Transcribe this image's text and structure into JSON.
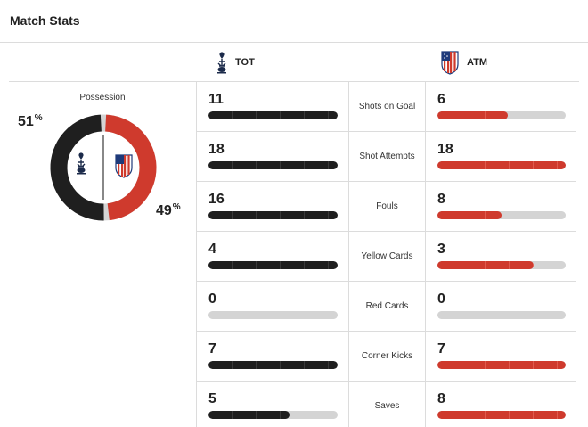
{
  "header": {
    "title": "Match Stats"
  },
  "teams": {
    "home": {
      "abbr": "TOT",
      "color": "#1f1f1f"
    },
    "away": {
      "abbr": "ATM",
      "color": "#cf3a2d"
    }
  },
  "possession": {
    "label": "Possession",
    "home_value": "51",
    "away_value": "49",
    "unit": "%",
    "home_fraction": 0.51
  },
  "stats": [
    {
      "label": "Shots on Goal",
      "home": "11",
      "away": "6",
      "home_fraction": 1.0,
      "away_fraction": 0.55
    },
    {
      "label": "Shot Attempts",
      "home": "18",
      "away": "18",
      "home_fraction": 1.0,
      "away_fraction": 1.0
    },
    {
      "label": "Fouls",
      "home": "16",
      "away": "8",
      "home_fraction": 1.0,
      "away_fraction": 0.5
    },
    {
      "label": "Yellow Cards",
      "home": "4",
      "away": "3",
      "home_fraction": 1.0,
      "away_fraction": 0.75
    },
    {
      "label": "Red Cards",
      "home": "0",
      "away": "0",
      "home_fraction": 0,
      "away_fraction": 0
    },
    {
      "label": "Corner Kicks",
      "home": "7",
      "away": "7",
      "home_fraction": 1.0,
      "away_fraction": 1.0
    },
    {
      "label": "Saves",
      "home": "5",
      "away": "8",
      "home_fraction": 0.625,
      "away_fraction": 1.0
    }
  ]
}
